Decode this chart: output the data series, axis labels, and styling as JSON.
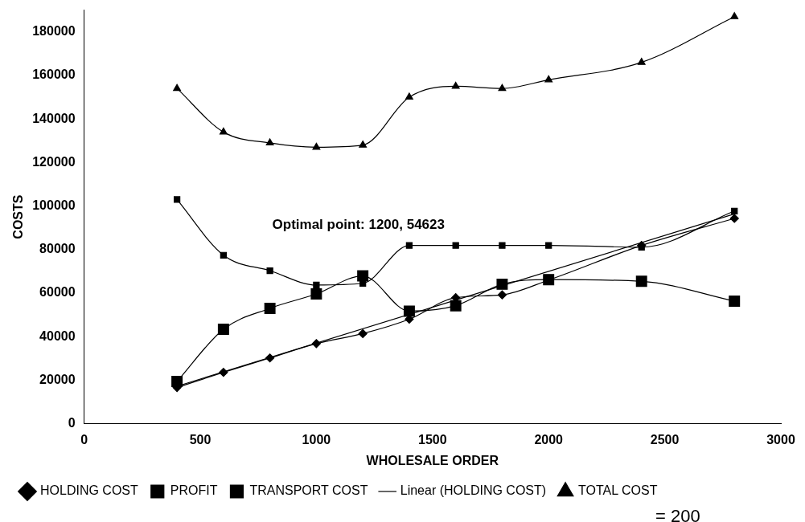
{
  "chart_data": {
    "type": "line",
    "xlabel": "WHOLESALE ORDER",
    "ylabel": "COSTS",
    "xlim": [
      0,
      3000
    ],
    "xticks": [
      0,
      500,
      1000,
      1500,
      2000,
      2500,
      3000
    ],
    "ylim": [
      0,
      190000
    ],
    "yticks": [
      0,
      20000,
      40000,
      60000,
      80000,
      100000,
      120000,
      140000,
      160000,
      180000
    ],
    "grid": false,
    "legend": "bottom left",
    "line_style": "solid",
    "annotations": [
      "Optimal point: 1200, 54623",
      "= 200"
    ],
    "series": [
      {
        "name": "HOLDING COST",
        "color": "#000000",
        "marker": "diamond",
        "x": [
          400,
          600,
          800,
          1000,
          1200,
          1400,
          1600,
          1800,
          2000,
          2400,
          2800
        ],
        "values": [
          16600,
          23600,
          30200,
          36800,
          41400,
          48000,
          57900,
          59200,
          66000,
          81900,
          94300
        ]
      },
      {
        "name": "PROFIT",
        "color": "#000000",
        "marker": "square",
        "x": [
          400,
          600,
          800,
          1000,
          1200,
          1400,
          1600,
          1800,
          2000,
          2400,
          2800
        ],
        "values": [
          19400,
          43400,
          53000,
          59600,
          67900,
          51700,
          54200,
          64100,
          66200,
          65400,
          56300
        ]
      },
      {
        "name": "TRANSPORT COST",
        "color": "#000000",
        "marker": "square",
        "x": [
          400,
          600,
          800,
          1000,
          1200,
          1400,
          1600,
          1800,
          2000,
          2400,
          2800
        ],
        "values": [
          103000,
          77400,
          70300,
          63700,
          64500,
          81900,
          81900,
          81900,
          81900,
          81100,
          97700
        ]
      },
      {
        "name": "Linear (HOLDING COST)",
        "color": "#000000",
        "marker": "none",
        "x": [
          400,
          2800
        ],
        "values": [
          17200,
          96400
        ]
      },
      {
        "name": "TOTAL COST",
        "color": "#000000",
        "marker": "triangle",
        "x": [
          400,
          600,
          800,
          1000,
          1200,
          1400,
          1600,
          1800,
          2000,
          2400,
          2800
        ],
        "values": [
          154000,
          134000,
          129000,
          127000,
          128000,
          150000,
          155000,
          154000,
          158000,
          166000,
          187000
        ]
      }
    ]
  }
}
